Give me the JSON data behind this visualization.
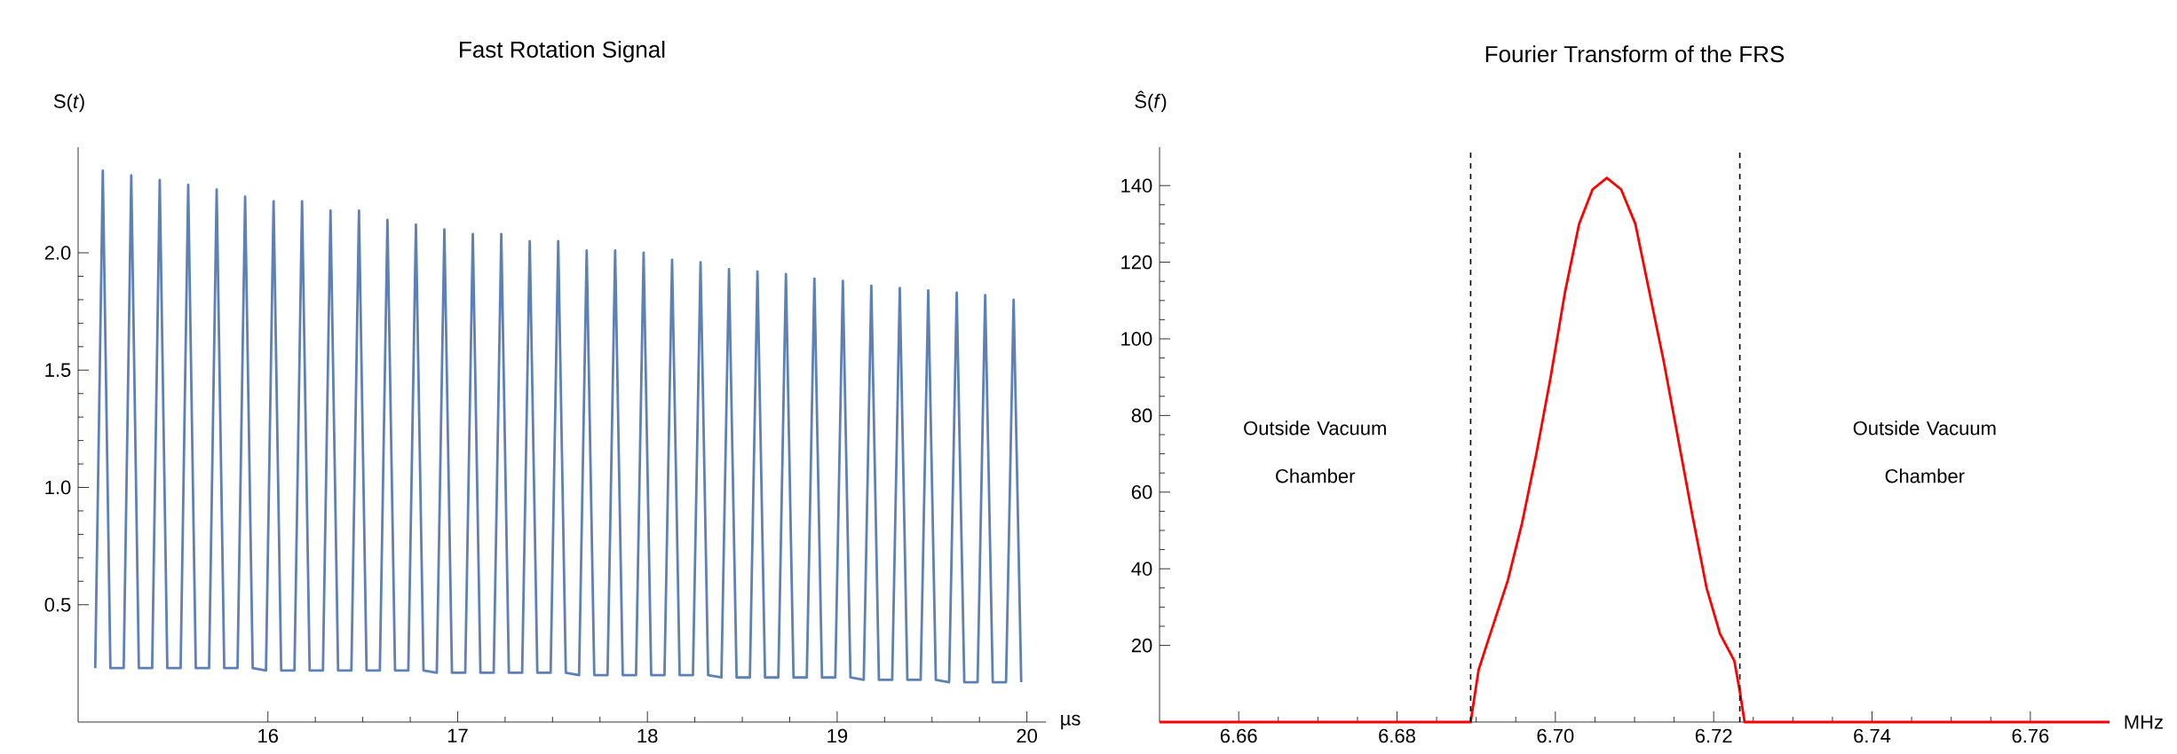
{
  "chart_data": [
    {
      "type": "line",
      "title": "Fast Rotation Signal",
      "ylabel": "S(*t*)",
      "xlabel": "µs",
      "xlim": [
        15,
        20.1
      ],
      "ylim": [
        0,
        2.45
      ],
      "xticks": [
        16,
        17,
        18,
        19,
        20
      ],
      "yticks": [
        0.5,
        {
          "value": 1.0,
          "label": "1.0"
        },
        1.5,
        {
          "value": 2.0,
          "label": "2.0"
        }
      ],
      "grid": false,
      "marker": "none",
      "line_style": "solid",
      "series": [
        {
          "color": "#5e81b5",
          "x": [
            15.09,
            15.13,
            15.17,
            15.24,
            15.28,
            15.32,
            15.39,
            15.43,
            15.47,
            15.54,
            15.58,
            15.62,
            15.69,
            15.73,
            15.77,
            15.84,
            15.88,
            15.92,
            15.99,
            16.03,
            16.07,
            16.14,
            16.18,
            16.22,
            16.29,
            16.33,
            16.37,
            16.44,
            16.48,
            16.52,
            16.59,
            16.63,
            16.67,
            16.74,
            16.78,
            16.82,
            16.89,
            16.93,
            16.97,
            17.04,
            17.08,
            17.12,
            17.19,
            17.23,
            17.27,
            17.34,
            17.38,
            17.42,
            17.49,
            17.53,
            17.57,
            17.64,
            17.68,
            17.72,
            17.79,
            17.83,
            17.87,
            17.94,
            17.98,
            18.02,
            18.09,
            18.13,
            18.17,
            18.24,
            18.28,
            18.32,
            18.39,
            18.43,
            18.47,
            18.54,
            18.58,
            18.62,
            18.69,
            18.73,
            18.77,
            18.84,
            18.88,
            18.92,
            18.99,
            19.03,
            19.07,
            19.14,
            19.18,
            19.22,
            19.29,
            19.33,
            19.37,
            19.44,
            19.48,
            19.52,
            19.59,
            19.63,
            19.67,
            19.74,
            19.78,
            19.82,
            19.89,
            19.93,
            19.97
          ],
          "values": [
            0.23,
            2.35,
            0.23,
            0.23,
            2.33,
            0.23,
            0.23,
            2.31,
            0.23,
            0.23,
            2.29,
            0.23,
            0.23,
            2.27,
            0.23,
            0.23,
            2.24,
            0.23,
            0.22,
            2.22,
            0.22,
            0.22,
            2.22,
            0.22,
            0.22,
            2.18,
            0.22,
            0.22,
            2.18,
            0.22,
            0.22,
            2.14,
            0.22,
            0.22,
            2.12,
            0.22,
            0.21,
            2.1,
            0.21,
            0.21,
            2.08,
            0.21,
            0.21,
            2.08,
            0.21,
            0.21,
            2.05,
            0.21,
            0.21,
            2.05,
            0.21,
            0.2,
            2.01,
            0.2,
            0.2,
            2.01,
            0.2,
            0.2,
            2.0,
            0.2,
            0.2,
            1.97,
            0.2,
            0.2,
            1.96,
            0.2,
            0.19,
            1.93,
            0.19,
            0.19,
            1.92,
            0.19,
            0.19,
            1.91,
            0.19,
            0.19,
            1.89,
            0.19,
            0.19,
            1.88,
            0.19,
            0.18,
            1.86,
            0.18,
            0.18,
            1.85,
            0.18,
            0.18,
            1.84,
            0.18,
            0.17,
            1.83,
            0.17,
            0.17,
            1.82,
            0.17,
            0.17,
            1.8,
            0.17
          ]
        }
      ]
    },
    {
      "type": "line",
      "title": "Fourier Transform of the FRS",
      "ylabel": "Ŝ(*f*)",
      "xlabel": "MHz",
      "xlim": [
        6.65,
        6.77
      ],
      "ylim": [
        0,
        150
      ],
      "xticks": [
        6.66,
        6.68,
        {
          "value": 6.7,
          "label": "6.70"
        },
        6.72,
        6.74,
        6.76
      ],
      "yticks": [
        20,
        40,
        60,
        80,
        100,
        120,
        140
      ],
      "grid": false,
      "marker": "none",
      "line_style": "solid",
      "ref_lines": [
        {
          "axis": "x",
          "value": 6.6893,
          "color": "#000000",
          "line_style": "dashed"
        },
        {
          "axis": "x",
          "value": 6.7233,
          "color": "#000000",
          "line_style": "dashed"
        }
      ],
      "annotations": [
        "Outside Vacuum Chamber",
        "Outside Vacuum Chamber"
      ],
      "series": [
        {
          "color": "#ff0000",
          "x": [
            6.65,
            6.6893,
            6.6903,
            6.6913,
            6.694,
            6.6958,
            6.6976,
            6.6994,
            6.7012,
            6.703,
            6.7047,
            6.7065,
            6.7083,
            6.7101,
            6.7119,
            6.7137,
            6.7155,
            6.7173,
            6.7191,
            6.7208,
            6.7226,
            6.7233,
            6.7239,
            6.77
          ],
          "values": [
            0,
            0,
            13.6,
            20,
            37,
            52,
            70,
            90,
            112,
            130,
            139,
            142,
            139,
            130,
            112,
            94,
            74,
            54,
            35,
            23,
            16,
            8,
            0,
            0
          ]
        }
      ]
    }
  ]
}
